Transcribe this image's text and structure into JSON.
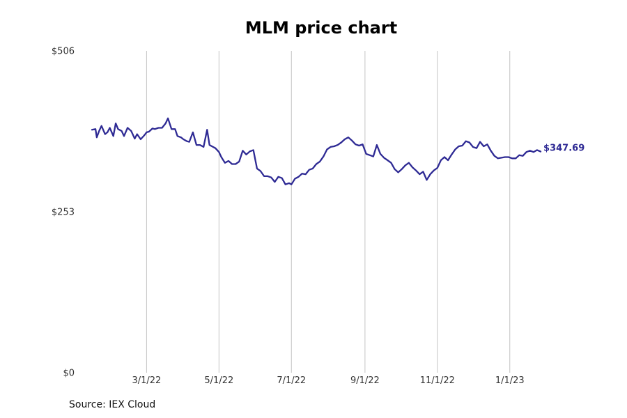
{
  "colors": {
    "line": "#2e2a94",
    "grid": "#c4c4c4",
    "text": "#333333"
  },
  "source": "Source: IEX Cloud",
  "chart_data": {
    "type": "line",
    "title": "MLM price chart",
    "xlabel": "",
    "ylabel": "",
    "x_type": "date",
    "xlim": [
      "2022-01-04",
      "2023-02-13"
    ],
    "ylim": [
      0,
      506
    ],
    "y_ticks": [
      {
        "value": 0,
        "label": "$0"
      },
      {
        "value": 253,
        "label": "$253"
      },
      {
        "value": 506,
        "label": "$506"
      }
    ],
    "x_ticks": [
      {
        "date": "2022-03-01",
        "label": "3/1/22"
      },
      {
        "date": "2022-05-01",
        "label": "5/1/22"
      },
      {
        "date": "2022-07-01",
        "label": "7/1/22"
      },
      {
        "date": "2022-09-01",
        "label": "9/1/22"
      },
      {
        "date": "2022-11-01",
        "label": "11/1/22"
      },
      {
        "date": "2023-01-01",
        "label": "1/1/23"
      }
    ],
    "grid": "vertical",
    "last_value_label": "$347.69",
    "series": [
      {
        "x": [
          "2022-01-14",
          "2022-01-17",
          "2022-01-18",
          "2022-01-20",
          "2022-01-22",
          "2022-01-25",
          "2022-01-27",
          "2022-01-29",
          "2022-02-01",
          "2022-02-03",
          "2022-02-05",
          "2022-02-08",
          "2022-02-10",
          "2022-02-13",
          "2022-02-16",
          "2022-02-19",
          "2022-02-21",
          "2022-02-24",
          "2022-02-27",
          "2022-03-01",
          "2022-03-03",
          "2022-03-06",
          "2022-03-08",
          "2022-03-11",
          "2022-03-14",
          "2022-03-17",
          "2022-03-19",
          "2022-03-22",
          "2022-03-25",
          "2022-03-27",
          "2022-03-30",
          "2022-04-01",
          "2022-04-04",
          "2022-04-06",
          "2022-04-09",
          "2022-04-12",
          "2022-04-15",
          "2022-04-18",
          "2022-04-21",
          "2022-04-23",
          "2022-04-26",
          "2022-04-28",
          "2022-05-01",
          "2022-05-03",
          "2022-05-06",
          "2022-05-09",
          "2022-05-12",
          "2022-05-15",
          "2022-05-18",
          "2022-05-21",
          "2022-05-24",
          "2022-05-27",
          "2022-05-30",
          "2022-06-02",
          "2022-06-05",
          "2022-06-08",
          "2022-06-11",
          "2022-06-14",
          "2022-06-17",
          "2022-06-20",
          "2022-06-23",
          "2022-06-26",
          "2022-06-29",
          "2022-07-01",
          "2022-07-04",
          "2022-07-07",
          "2022-07-10",
          "2022-07-13",
          "2022-07-16",
          "2022-07-19",
          "2022-07-22",
          "2022-07-25",
          "2022-07-28",
          "2022-07-31",
          "2022-08-03",
          "2022-08-06",
          "2022-08-09",
          "2022-08-12",
          "2022-08-15",
          "2022-08-18",
          "2022-08-21",
          "2022-08-24",
          "2022-08-27",
          "2022-08-30",
          "2022-09-02",
          "2022-09-05",
          "2022-09-08",
          "2022-09-11",
          "2022-09-14",
          "2022-09-17",
          "2022-09-20",
          "2022-09-23",
          "2022-09-26",
          "2022-09-29",
          "2022-10-02",
          "2022-10-05",
          "2022-10-08",
          "2022-10-11",
          "2022-10-14",
          "2022-10-17",
          "2022-10-20",
          "2022-10-23",
          "2022-10-26",
          "2022-10-29",
          "2022-11-01",
          "2022-11-04",
          "2022-11-07",
          "2022-11-10",
          "2022-11-13",
          "2022-11-16",
          "2022-11-19",
          "2022-11-22",
          "2022-11-25",
          "2022-11-28",
          "2022-12-01",
          "2022-12-04",
          "2022-12-07",
          "2022-12-10",
          "2022-12-13",
          "2022-12-16",
          "2022-12-19",
          "2022-12-22",
          "2022-12-25",
          "2022-12-28",
          "2022-12-31",
          "2023-01-03",
          "2023-01-06",
          "2023-01-09",
          "2023-01-12",
          "2023-01-15",
          "2023-01-18",
          "2023-01-21",
          "2023-01-24",
          "2023-01-27"
        ],
        "y": [
          382,
          383,
          370,
          380,
          388,
          375,
          378,
          385,
          372,
          392,
          383,
          380,
          372,
          385,
          380,
          368,
          375,
          367,
          373,
          378,
          379,
          384,
          383,
          385,
          385,
          392,
          400,
          383,
          383,
          372,
          370,
          367,
          364,
          363,
          378,
          358,
          358,
          355,
          382,
          358,
          355,
          353,
          347,
          339,
          330,
          333,
          328,
          328,
          332,
          349,
          343,
          348,
          350,
          321,
          317,
          309,
          309,
          307,
          300,
          308,
          306,
          296,
          298,
          296,
          305,
          308,
          313,
          312,
          319,
          321,
          328,
          332,
          340,
          351,
          355,
          356,
          358,
          362,
          367,
          370,
          365,
          359,
          357,
          359,
          344,
          342,
          340,
          358,
          344,
          338,
          334,
          330,
          320,
          315,
          320,
          326,
          330,
          323,
          318,
          312,
          316,
          303,
          312,
          318,
          322,
          334,
          339,
          334,
          343,
          351,
          356,
          357,
          364,
          362,
          355,
          353,
          363,
          356,
          359,
          349,
          341,
          337,
          338,
          339,
          339,
          337,
          337,
          342,
          341,
          347,
          349,
          347,
          350,
          347.69
        ]
      }
    ]
  }
}
